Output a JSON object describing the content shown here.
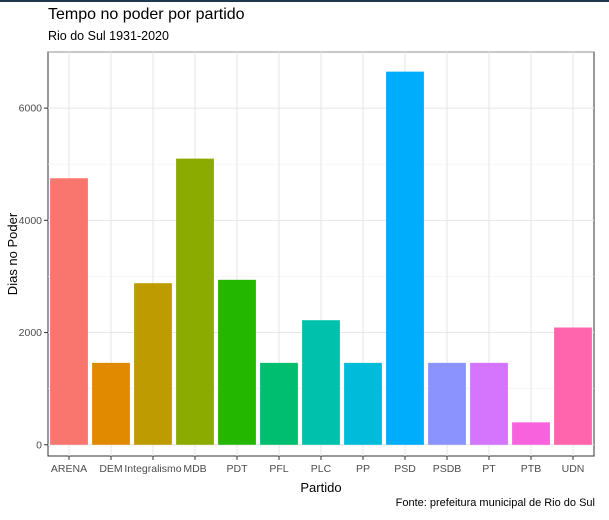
{
  "chart_data": {
    "type": "bar",
    "title": "Tempo no poder por partido",
    "subtitle": "Rio do Sul 1931-2020",
    "xlabel": "Partido",
    "ylabel": "Dias no Poder",
    "caption": "Fonte: prefeitura municipal de Rio do Sul",
    "ylim": [
      -200,
      7000
    ],
    "yticks": [
      0,
      2000,
      4000,
      6000
    ],
    "grid": true,
    "legend": "none",
    "categories": [
      "ARENA",
      "DEM",
      "Integralismo",
      "MDB",
      "PDT",
      "PFL",
      "PLC",
      "PP",
      "PSD",
      "PSDB",
      "PT",
      "PTB",
      "UDN"
    ],
    "values": [
      4750,
      1460,
      2880,
      5100,
      2940,
      1460,
      2220,
      1460,
      6650,
      1460,
      1460,
      400,
      2090
    ],
    "colors": [
      "#F8766D",
      "#E18A00",
      "#BE9C00",
      "#8CAB00",
      "#24B700",
      "#00BE70",
      "#00C1AB",
      "#00BBDA",
      "#00ACFC",
      "#8B93FF",
      "#D575FE",
      "#F962DD",
      "#FF65AC"
    ]
  }
}
